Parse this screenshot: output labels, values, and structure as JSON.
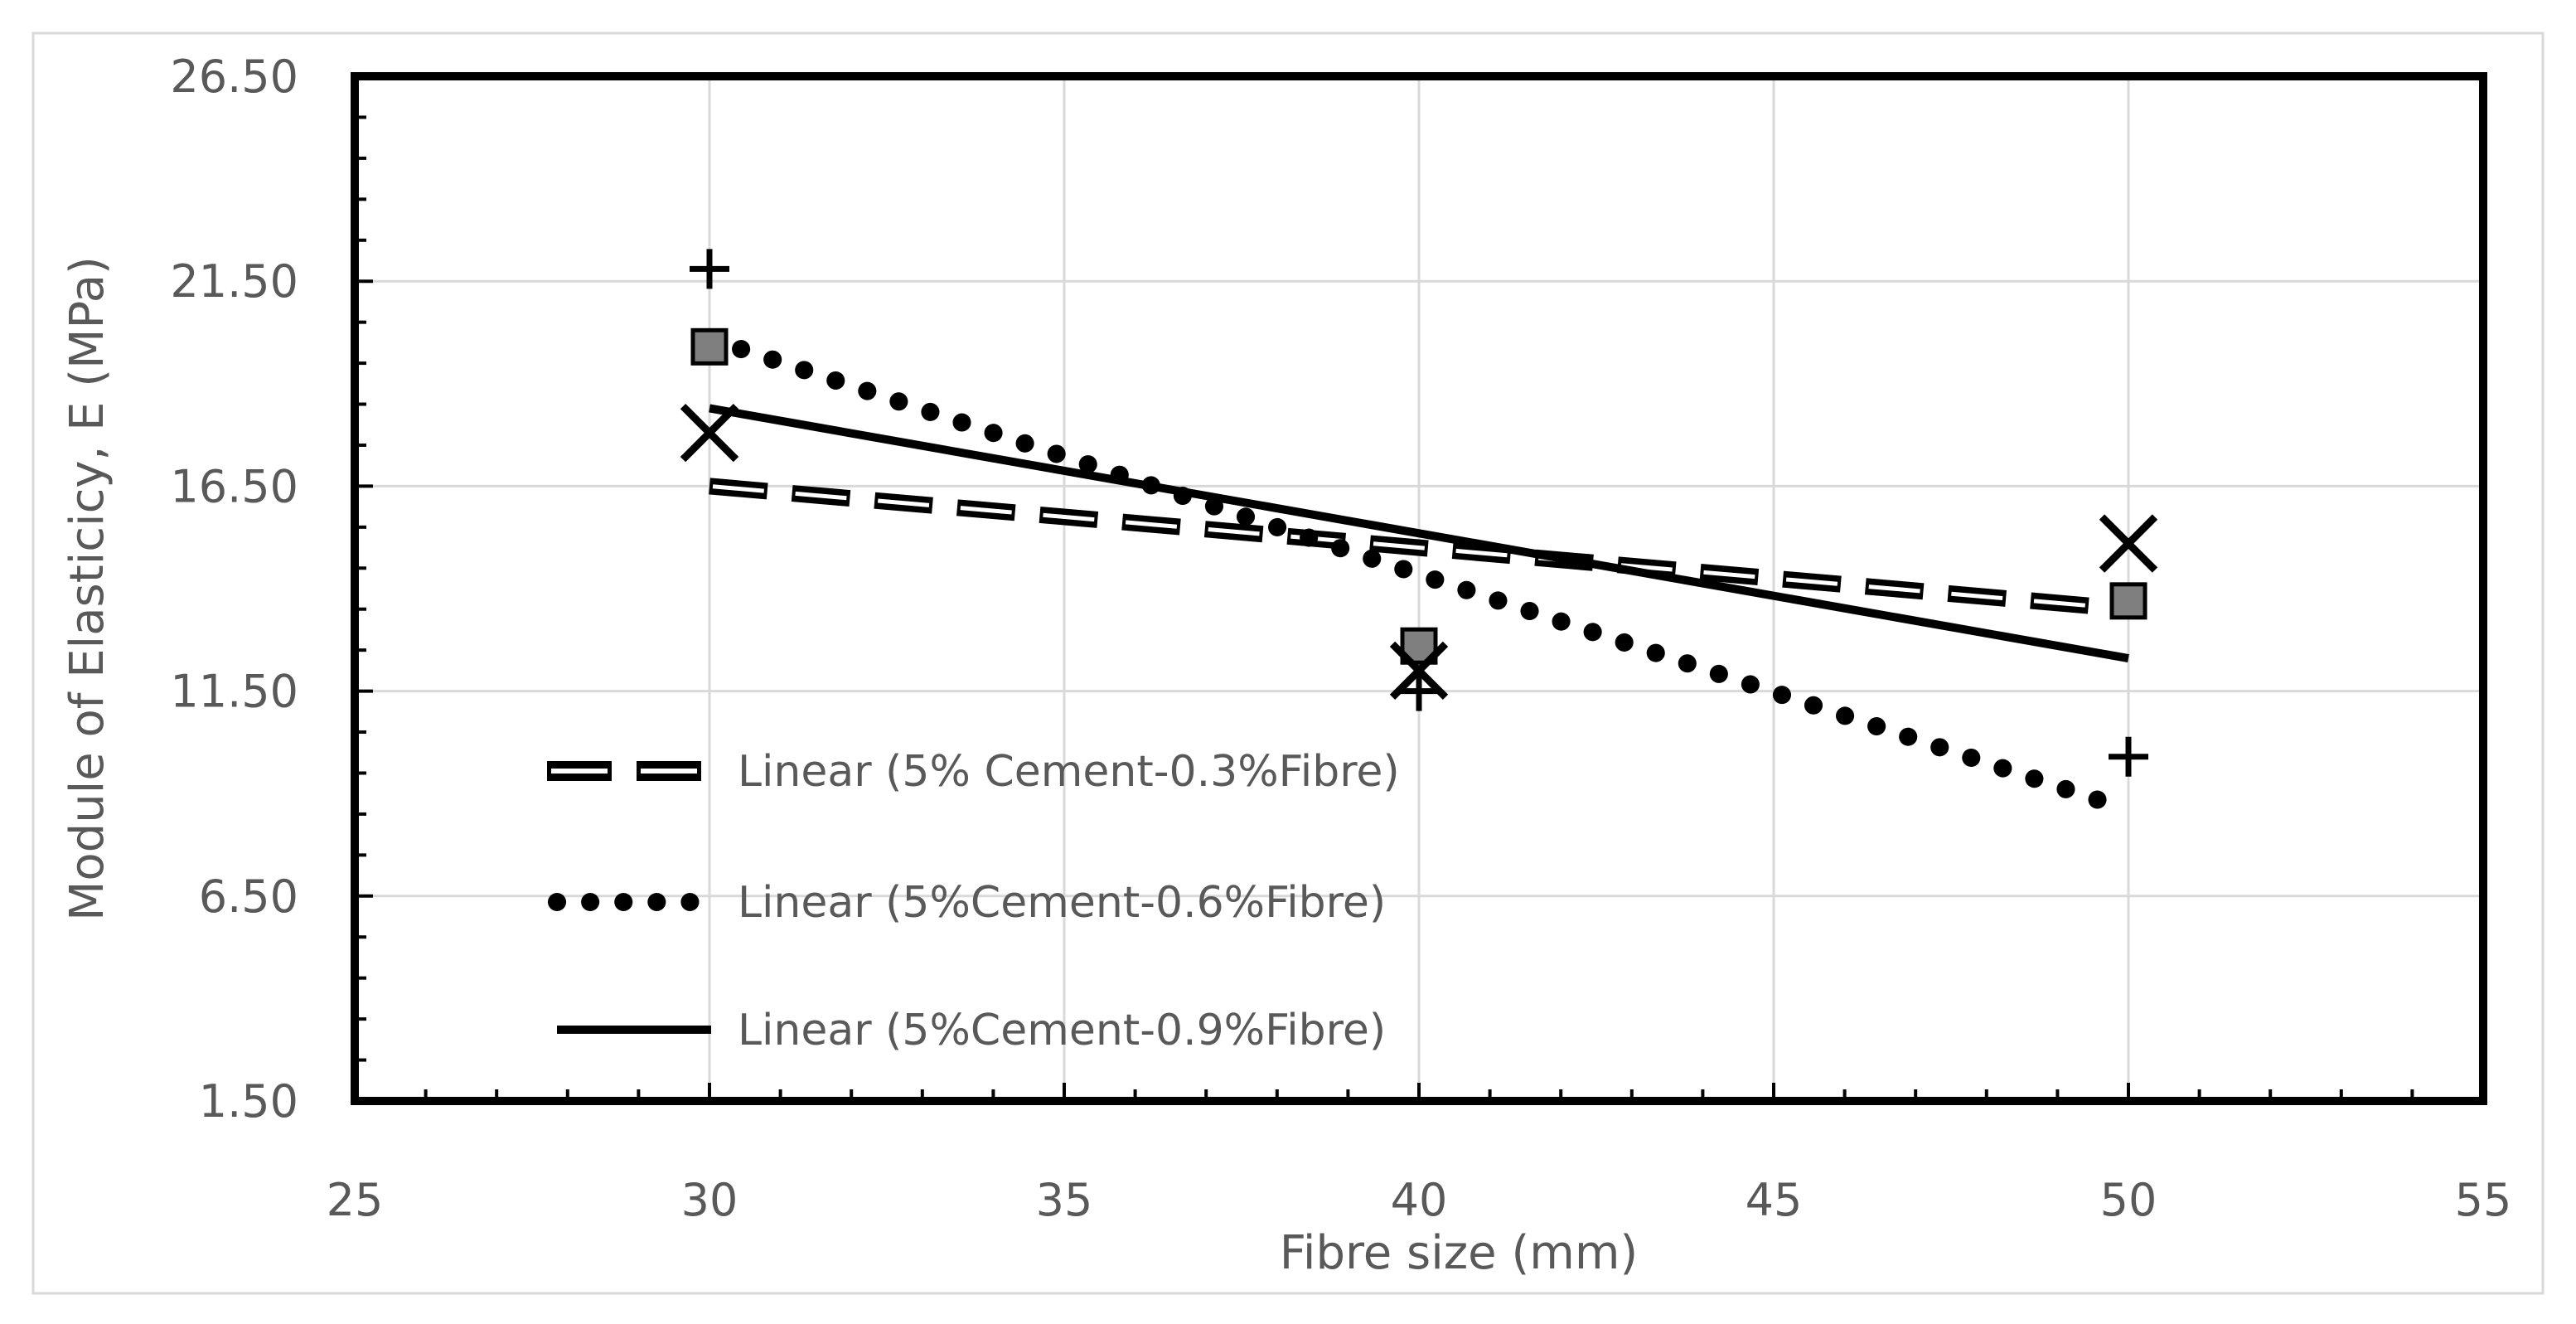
{
  "chart_data": {
    "type": "scatter",
    "title": "",
    "xlabel": "Fibre size (mm)",
    "ylabel": "Module of Elasticicy, E (MPa)",
    "xlim": [
      25,
      55
    ],
    "ylim": [
      1.5,
      26.5
    ],
    "xticks": [
      25,
      30,
      35,
      40,
      45,
      50,
      55
    ],
    "yticks": [
      1.5,
      6.5,
      11.5,
      16.5,
      21.5,
      26.5
    ],
    "xtick_labels": [
      "25",
      "30",
      "35",
      "40",
      "45",
      "50",
      "55"
    ],
    "ytick_labels": [
      "1.50",
      "6.50",
      "11.50",
      "16.50",
      "21.50",
      "26.50"
    ],
    "grid": true,
    "legend_position": "left-center",
    "series": [
      {
        "marker": "square",
        "color": "#000000",
        "x": [
          30,
          40,
          50
        ],
        "y": [
          19.9,
          12.6,
          13.7
        ]
      },
      {
        "marker": "plus",
        "color": "#000000",
        "x": [
          30,
          40,
          50
        ],
        "y": [
          21.8,
          11.5,
          9.9
        ]
      },
      {
        "marker": "x",
        "color": "#000000",
        "x": [
          30,
          40,
          50
        ],
        "y": [
          17.8,
          12.0,
          15.1
        ]
      }
    ],
    "trendlines": [
      {
        "name": "Linear (5% Cement-0.3%Fibre)",
        "style": "dashed",
        "x": [
          30,
          50
        ],
        "y": [
          16.5,
          13.5
        ]
      },
      {
        "name": "Linear (5%Cement-0.6%Fibre)",
        "style": "dotted",
        "x": [
          30,
          50
        ],
        "y": [
          20.1,
          8.6
        ]
      },
      {
        "name": "Linear (5%Cement-0.9%Fibre)",
        "style": "solid",
        "x": [
          30,
          50
        ],
        "y": [
          18.4,
          12.3
        ]
      }
    ]
  }
}
